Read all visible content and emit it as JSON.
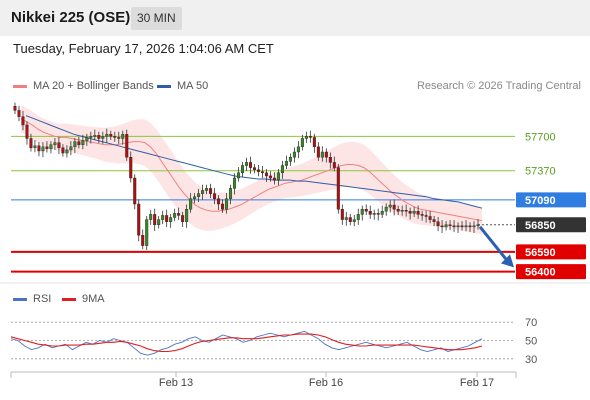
{
  "header": {
    "title": "Nikkei 225 (OSE)",
    "interval": "30 MIN",
    "datetime": "Tuesday, February 17, 2026 1:04:06 AM CET"
  },
  "legend": {
    "bollinger": {
      "label": "MA 20 + Bollinger Bands",
      "color": "#f08080"
    },
    "ma50": {
      "label": "MA 50",
      "color": "#2e5ea8"
    },
    "credit": "Research © 2026 Trading Central"
  },
  "indicator_legend": {
    "rsi": {
      "label": "RSI",
      "color": "#4a72c8"
    },
    "ma9": {
      "label": "9MA",
      "color": "#e02020"
    }
  },
  "chart_data": [
    {
      "type": "candlestick",
      "x_labels": [
        "Feb 13",
        "Feb 16",
        "Feb 17"
      ],
      "ylim": [
        56300,
        58050
      ],
      "levels": [
        {
          "value": 57700,
          "label": "57700",
          "kind": "resistance",
          "color": "#8cc63f"
        },
        {
          "value": 57370,
          "label": "57370",
          "kind": "resistance",
          "color": "#8cc63f"
        },
        {
          "value": 57090,
          "label": "57090",
          "kind": "pivot",
          "color": "#2f7de1"
        },
        {
          "value": 56850,
          "label": "56850",
          "kind": "last",
          "color": "#333333"
        },
        {
          "value": 56590,
          "label": "56590",
          "kind": "support",
          "color": "#e00000"
        },
        {
          "value": 56400,
          "label": "56400",
          "kind": "support",
          "color": "#e00000"
        }
      ],
      "close_series": [
        57950,
        57890,
        57810,
        57680,
        57590,
        57610,
        57560,
        57600,
        57580,
        57620,
        57640,
        57590,
        57540,
        57570,
        57600,
        57650,
        57620,
        57660,
        57690,
        57700,
        57710,
        57680,
        57700,
        57720,
        57700,
        57690,
        57680,
        57720,
        57500,
        57300,
        57050,
        56750,
        56650,
        56900,
        56950,
        56850,
        56900,
        56940,
        56880,
        56920,
        56960,
        56940,
        56880,
        57000,
        57100,
        57120,
        57150,
        57180,
        57200,
        57150,
        57100,
        57050,
        57000,
        57100,
        57200,
        57300,
        57350,
        57420,
        57450,
        57400,
        57380,
        57360,
        57350,
        57320,
        57300,
        57280,
        57350,
        57420,
        57460,
        57500,
        57550,
        57600,
        57680,
        57700,
        57690,
        57600,
        57500,
        57550,
        57500,
        57450,
        57400,
        57000,
        56900,
        56920,
        56880,
        56900,
        56950,
        57000,
        56980,
        56950,
        56960,
        56950,
        56980,
        57020,
        57040,
        57000,
        56980,
        56990,
        56980,
        56960,
        56980,
        56950,
        56940,
        56930,
        56900,
        56880,
        56840,
        56830,
        56850,
        56840,
        56830,
        56840,
        56830,
        56840,
        56830,
        56840,
        56850
      ],
      "ma20_series": [
        57870,
        57840,
        57810,
        57770,
        57740,
        57720,
        57700,
        57690,
        57690,
        57680,
        57670,
        57660,
        57650,
        57640,
        57630,
        57620,
        57620,
        57620,
        57630,
        57640,
        57650,
        57650,
        57640,
        57600,
        57540,
        57460,
        57380,
        57300,
        57220,
        57150,
        57090,
        57040,
        57010,
        56990,
        56980,
        56980,
        56990,
        57000,
        57020,
        57040,
        57070,
        57100,
        57130,
        57160,
        57190,
        57210,
        57230,
        57250,
        57260,
        57270,
        57280,
        57300,
        57320,
        57340,
        57360,
        57380,
        57400,
        57420,
        57430,
        57430,
        57420,
        57400,
        57360,
        57310,
        57260,
        57210,
        57160,
        57120,
        57080,
        57050,
        57020,
        57000,
        56990,
        56980,
        56970,
        56960,
        56950,
        56940,
        56930,
        56920,
        56910,
        56900,
        56890
      ],
      "ma50_series": [
        57900,
        57870,
        57840,
        57810,
        57780,
        57750,
        57720,
        57700,
        57680,
        57660,
        57640,
        57620,
        57600,
        57580,
        57560,
        57540,
        57520,
        57500,
        57480,
        57460,
        57440,
        57420,
        57400,
        57380,
        57360,
        57340,
        57320,
        57310,
        57300,
        57290,
        57290,
        57280,
        57280,
        57280,
        57270,
        57270,
        57260,
        57250,
        57240,
        57230,
        57220,
        57210,
        57200,
        57190,
        57180,
        57170,
        57160,
        57150,
        57140,
        57130,
        57120,
        57100,
        57090,
        57080,
        57070,
        57050,
        57030,
        57010
      ],
      "forecast": {
        "from": 56850,
        "to": 56450,
        "direction": "down"
      }
    },
    {
      "type": "line",
      "title": "RSI",
      "yticks": [
        70,
        50,
        30
      ],
      "ylim": [
        20,
        80
      ],
      "series": [
        {
          "name": "RSI",
          "values": [
            52,
            50,
            44,
            40,
            42,
            46,
            42,
            44,
            46,
            40,
            44,
            48,
            46,
            50,
            48,
            52,
            50,
            48,
            42,
            36,
            34,
            36,
            40,
            42,
            46,
            48,
            52,
            54,
            50,
            48,
            52,
            56,
            54,
            52,
            48,
            50,
            54,
            56,
            58,
            56,
            54,
            56,
            58,
            60,
            56,
            52,
            46,
            42,
            40,
            42,
            44,
            46,
            48,
            46,
            44,
            42,
            44,
            46,
            48,
            44,
            40,
            38,
            40,
            42,
            38,
            40,
            42,
            44,
            48,
            52
          ]
        },
        {
          "name": "9MA",
          "values": [
            54,
            52,
            50,
            48,
            46,
            45,
            44,
            44,
            45,
            45,
            45,
            46,
            46,
            47,
            48,
            48,
            49,
            48,
            46,
            44,
            41,
            39,
            38,
            38,
            39,
            41,
            44,
            47,
            49,
            50,
            51,
            52,
            53,
            53,
            52,
            52,
            52,
            53,
            54,
            55,
            56,
            56,
            57,
            57,
            57,
            56,
            54,
            51,
            48,
            46,
            45,
            44,
            44,
            45,
            45,
            45,
            45,
            45,
            45,
            45,
            44,
            43,
            42,
            41,
            40,
            40,
            40,
            41,
            42,
            44
          ]
        }
      ]
    }
  ]
}
